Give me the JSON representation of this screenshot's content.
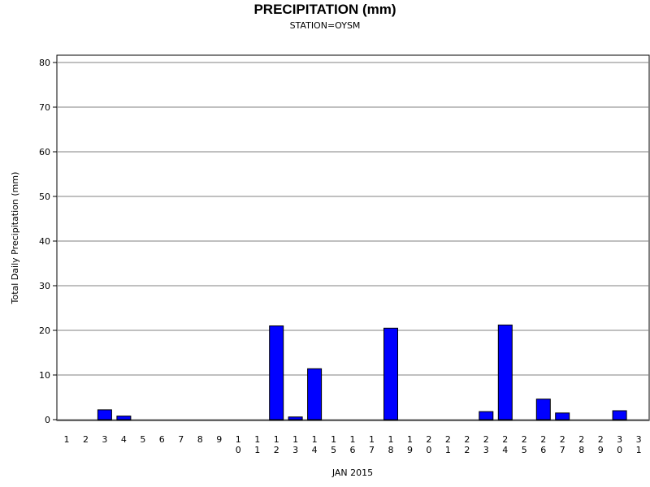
{
  "chart_data": {
    "type": "bar",
    "title": "PRECIPITATION (mm)",
    "subtitle": "STATION=OYSM",
    "xlabel": "JAN 2015",
    "ylabel": "Total Daily Precipitation (mm)",
    "ylim": [
      0,
      80
    ],
    "yticks": [
      "0",
      "10",
      "20",
      "30",
      "40",
      "50",
      "60",
      "70",
      "80"
    ],
    "grid": true,
    "legend": "none",
    "categories": [
      "1",
      "2",
      "3",
      "4",
      "5",
      "6",
      "7",
      "8",
      "9",
      "10",
      "11",
      "12",
      "13",
      "14",
      "15",
      "16",
      "17",
      "18",
      "19",
      "20",
      "21",
      "22",
      "23",
      "24",
      "25",
      "26",
      "27",
      "28",
      "29",
      "30",
      "31"
    ],
    "values": [
      0,
      0,
      2.2,
      0.8,
      0,
      0,
      0,
      0,
      0,
      0,
      0,
      21.0,
      0.6,
      11.4,
      0,
      0,
      0,
      20.5,
      0,
      0,
      0,
      0,
      1.8,
      21.2,
      0,
      4.6,
      1.5,
      0,
      0,
      2.0,
      0
    ],
    "bar_color": "#0000ff",
    "bar_edge_color": "#000000",
    "grid_color": "#808080"
  }
}
